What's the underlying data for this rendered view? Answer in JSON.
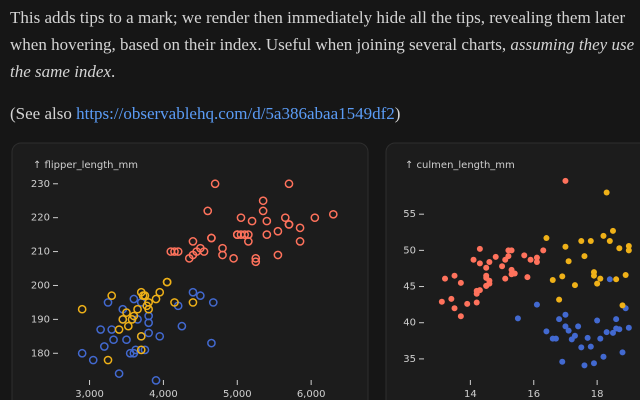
{
  "intro": [
    "This adds tips to a mark; we render then immediately hide all the tips, revealing them later when hovering, based on their index. Useful when joining several charts, ",
    "assuming they use the same index",
    "."
  ],
  "see_also": [
    "(See also ",
    "https://observablehq.com/d/5a386abaa1549df2",
    ")"
  ],
  "chart_data": [
    {
      "type": "scatter",
      "y_label": "↑ flipper_length_mm",
      "hollow": true,
      "xlim": [
        2600,
        6350
      ],
      "ylim": [
        173,
        232
      ],
      "xticks": [
        {
          "value": 3000,
          "label": "3,000"
        },
        {
          "value": 4000,
          "label": "4,000"
        },
        {
          "value": 5000,
          "label": "5,000"
        },
        {
          "value": 6000,
          "label": "6,000"
        }
      ],
      "yticks": [
        180,
        190,
        200,
        210,
        220,
        230
      ],
      "series": [
        {
          "color": "#4269d0",
          "x": [
            3750,
            3800,
            3250,
            3450,
            3650,
            3625,
            4675,
            3200,
            3800,
            4400,
            3700,
            3450,
            4500,
            3325,
            4200,
            3400,
            3600,
            3800,
            3950,
            3550,
            3300,
            4650,
            3150,
            3900,
            2900,
            3050,
            4250,
            3500,
            3700,
            3600
          ],
          "values": [
            181,
            186,
            195,
            193,
            190,
            181,
            195,
            182,
            191,
            198,
            185,
            190,
            197,
            184,
            194,
            174,
            180,
            189,
            185,
            180,
            187,
            183,
            187,
            172,
            180,
            178,
            188,
            184,
            195,
            196
          ]
        },
        {
          "color": "#efb118",
          "x": [
            3500,
            3900,
            3650,
            3525,
            3725,
            3950,
            3250,
            3750,
            4150,
            3700,
            3800,
            3775,
            3700,
            4050,
            3575,
            4050,
            3300,
            3700,
            3450,
            4400,
            3600,
            3400,
            2900,
            3800
          ],
          "values": [
            192,
            196,
            193,
            188,
            197,
            198,
            178,
            197,
            195,
            198,
            193,
            194,
            185,
            201,
            190,
            201,
            197,
            181,
            190,
            195,
            191,
            187,
            193,
            195
          ]
        },
        {
          "color": "#ff725c",
          "x": [
            4500,
            5700,
            4450,
            5700,
            5400,
            4550,
            4800,
            5200,
            4400,
            5150,
            4650,
            5550,
            4650,
            5850,
            4200,
            5850,
            4150,
            6300,
            4800,
            5350,
            5700,
            5000,
            4400,
            5050,
            5000,
            5100,
            4100,
            5650,
            4600,
            5550,
            5250,
            4700,
            5050,
            6050,
            5150,
            5400,
            4950,
            5250,
            4350,
            5350
          ],
          "values": [
            211,
            230,
            210,
            218,
            215,
            210,
            211,
            219,
            209,
            215,
            214,
            216,
            214,
            213,
            210,
            217,
            210,
            221,
            209,
            222,
            218,
            215,
            213,
            215,
            215,
            215,
            210,
            220,
            222,
            209,
            207,
            230,
            220,
            220,
            213,
            219,
            208,
            208,
            208,
            225
          ]
        }
      ]
    },
    {
      "type": "scatter",
      "y_label": "↑ culmen_length_mm",
      "hollow": false,
      "xlim": [
        12.6,
        19.1
      ],
      "ylim": [
        32.5,
        60
      ],
      "xticks": [
        14,
        16,
        18
      ],
      "yticks": [
        35,
        40,
        45,
        50,
        55
      ],
      "series": [
        {
          "color": "#4269d0",
          "x": [
            18.7,
            17.4,
            18.0,
            17.8,
            19.0,
            17.1,
            18.6,
            17.6,
            18.9,
            16.6,
            18.1,
            17.0,
            18.5,
            16.9,
            17.5,
            18.3,
            16.1,
            17.9,
            18.4,
            16.7,
            17.2,
            18.8,
            17.3,
            16.4,
            18.2,
            15.5,
            16.8,
            17.7,
            18.6,
            17.0
          ],
          "values": [
            39.1,
            39.5,
            40.3,
            36.7,
            39.3,
            38.9,
            39.2,
            34.1,
            42.0,
            37.8,
            37.8,
            41.1,
            38.6,
            34.6,
            36.6,
            38.7,
            42.5,
            34.4,
            46.0,
            37.8,
            37.7,
            35.9,
            38.2,
            38.8,
            35.3,
            40.6,
            40.5,
            37.9,
            40.5,
            39.5
          ]
        },
        {
          "color": "#efb118",
          "x": [
            17.9,
            19.0,
            18.4,
            18.0,
            18.5,
            17.3,
            18.1,
            17.8,
            18.6,
            17.5,
            18.9,
            16.4,
            17.9,
            18.2,
            16.6,
            17.0,
            18.7,
            18.3,
            16.9,
            17.6,
            18.8,
            17.1,
            16.8,
            19.0
          ],
          "values": [
            46.5,
            50.0,
            51.3,
            45.4,
            52.7,
            45.2,
            46.1,
            51.3,
            46.0,
            51.3,
            46.6,
            51.7,
            47.0,
            52.0,
            45.9,
            50.5,
            50.3,
            58.0,
            46.4,
            49.2,
            42.4,
            48.5,
            43.2,
            50.6
          ]
        },
        {
          "color": "#ff725c",
          "x": [
            13.2,
            16.3,
            14.1,
            15.2,
            14.5,
            13.5,
            14.6,
            15.3,
            13.4,
            15.4,
            13.7,
            16.1,
            13.7,
            14.6,
            14.6,
            15.7,
            13.5,
            15.2,
            14.5,
            15.1,
            14.3,
            14.5,
            14.5,
            15.8,
            13.1,
            15.1,
            14.3,
            15.0,
            14.3,
            15.3,
            15.3,
            14.2,
            14.5,
            17.0,
            14.8,
            16.1,
            13.9,
            14.2,
            14.2,
            15.9
          ],
          "values": [
            46.1,
            50.0,
            48.7,
            50.0,
            47.6,
            46.5,
            45.4,
            46.7,
            43.3,
            46.8,
            40.9,
            49.0,
            45.5,
            48.4,
            45.8,
            49.3,
            42.0,
            49.2,
            46.2,
            48.7,
            50.2,
            45.1,
            46.5,
            46.3,
            42.9,
            46.1,
            44.5,
            47.8,
            48.2,
            50.0,
            47.3,
            42.8,
            45.1,
            59.6,
            49.1,
            48.4,
            42.6,
            44.4,
            44.0,
            48.7
          ]
        }
      ]
    }
  ]
}
